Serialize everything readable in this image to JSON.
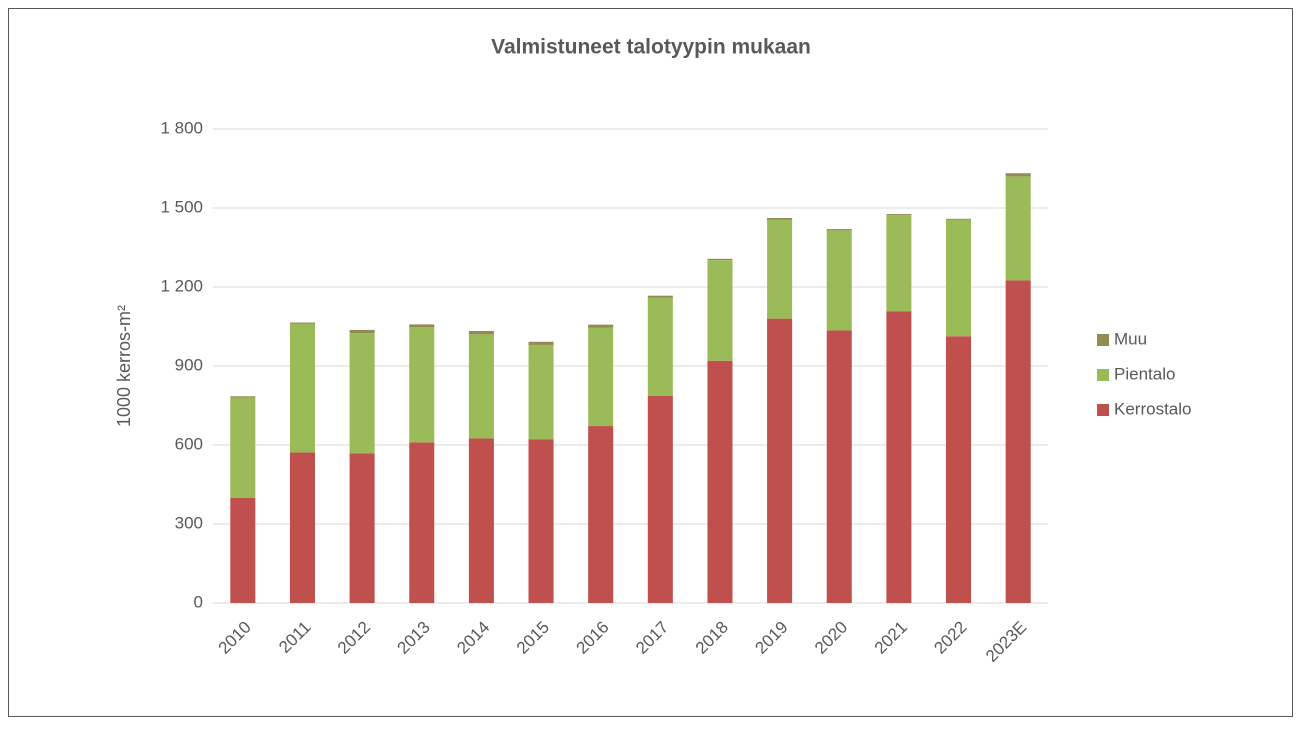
{
  "chart_data": {
    "type": "stacked_bar",
    "title": "Valmistuneet talotyypin mukaan",
    "y_label": "1000 kerros-m²",
    "categories": [
      "2010",
      "2011",
      "2012",
      "2013",
      "2014",
      "2015",
      "2016",
      "2017",
      "2018",
      "2019",
      "2020",
      "2021",
      "2022",
      "2023E"
    ],
    "series": [
      {
        "name": "Kerrostalo",
        "color": "#c0504d",
        "values": [
          400,
          572,
          568,
          610,
          625,
          622,
          672,
          786,
          920,
          1080,
          1035,
          1108,
          1013,
          1225
        ]
      },
      {
        "name": "Pientalo",
        "color": "#9bbb59",
        "values": [
          380,
          488,
          457,
          438,
          395,
          358,
          373,
          374,
          382,
          375,
          380,
          365,
          442,
          395
        ]
      },
      {
        "name": "Muu",
        "color": "#948a54",
        "values": [
          5,
          5,
          12,
          10,
          13,
          12,
          12,
          7,
          5,
          7,
          5,
          4,
          4,
          12
        ]
      }
    ],
    "ylim": [
      0,
      1800
    ],
    "yticks": [
      0,
      300,
      600,
      900,
      {
        "value": 1200,
        "label": "1 200"
      },
      {
        "value": 1500,
        "label": "1 500"
      },
      {
        "value": 1800,
        "label": "1 800"
      }
    ],
    "grid": true,
    "legend": "right"
  }
}
